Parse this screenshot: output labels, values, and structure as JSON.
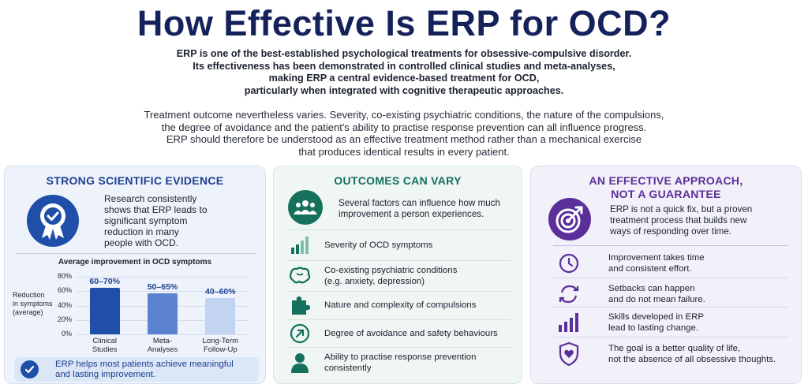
{
  "title": "How Effective Is ERP for OCD?",
  "intro": {
    "p1": [
      "ERP is one of the best-established psychological treatments for obsessive-compulsive disorder.",
      "Its effectiveness has been demonstrated in controlled clinical studies and meta-analyses,",
      "making ERP a central evidence-based treatment for OCD,",
      "particularly when integrated with cognitive therapeutic approaches."
    ],
    "p2": [
      "Treatment outcome nevertheless varies. Severity, co-existing psychiatric conditions, the nature of the compulsions,",
      "the degree of avoidance and the patient's ability to practise response prevention can all influence progress.",
      "ERP should therefore be understood as an effective treatment method rather than a mechanical exercise",
      "that produces identical results in every patient."
    ]
  },
  "left": {
    "title": "STRONG SCIENTIFIC EVIDENCE",
    "icon": "award-badge-icon",
    "lead": [
      "Research consistently",
      "shows that ERP leads to",
      "significant symptom",
      "reduction in many",
      "people with OCD."
    ],
    "chart_title": "Average improvement in OCD symptoms",
    "ylabel": [
      "Reduction",
      "in symptoms",
      "(average)"
    ],
    "banner": [
      "ERP helps most patients achieve meaningful",
      "and lasting improvement."
    ],
    "colors": {
      "accent": "#1d3e8f",
      "bar1": "#1f4fa8",
      "bar2": "#5b83cf",
      "bar3": "#c3d4f1"
    }
  },
  "chart_data": {
    "type": "bar",
    "categories": [
      [
        "Clinical",
        "Studies"
      ],
      [
        "Meta-",
        "Analyses"
      ],
      [
        "Long-Term",
        "Follow-Up"
      ]
    ],
    "series": [
      {
        "values": [
          65,
          57.5,
          50
        ]
      }
    ],
    "data_labels": [
      "60–70%",
      "50–65%",
      "40–60%"
    ],
    "title": "Average improvement in OCD symptoms",
    "xlabel": "",
    "ylabel": "Reduction in symptoms (average)",
    "ylim": [
      0,
      80
    ],
    "yticks": [
      "0%",
      "20%",
      "40%",
      "60%",
      "80%"
    ],
    "grid": true
  },
  "mid": {
    "title": "OUTCOMES CAN VARY",
    "icon": "people-group-icon",
    "lead": [
      "Several factors can influence how much",
      "improvement a person experiences."
    ],
    "items": [
      {
        "icon": "signal-bars-icon",
        "lines": [
          "Severity of OCD symptoms"
        ]
      },
      {
        "icon": "brain-icon",
        "lines": [
          "Co-existing psychiatric conditions",
          "(e.g. anxiety, depression)"
        ]
      },
      {
        "icon": "puzzle-icon",
        "lines": [
          "Nature and complexity of compulsions"
        ]
      },
      {
        "icon": "arrow-up-right-icon",
        "lines": [
          "Degree of avoidance and safety behaviours"
        ]
      },
      {
        "icon": "person-icon",
        "lines": [
          "Ability to practise response prevention",
          "consistently"
        ]
      }
    ],
    "colors": {
      "accent": "#15705c"
    }
  },
  "right": {
    "title": [
      "AN EFFECTIVE APPROACH,",
      "NOT A GUARANTEE"
    ],
    "icon": "target-arrow-icon",
    "lead": [
      "ERP is not a quick fix, but a proven",
      "treatment process that builds new",
      "ways of responding over time."
    ],
    "items": [
      {
        "icon": "clock-icon",
        "lines": [
          "Improvement takes time",
          "and consistent effort."
        ]
      },
      {
        "icon": "refresh-cycle-icon",
        "lines": [
          "Setbacks can happen",
          "and do not mean failure."
        ]
      },
      {
        "icon": "growth-bars-icon",
        "lines": [
          "Skills developed in ERP",
          "lead to lasting change."
        ]
      },
      {
        "icon": "heart-shield-icon",
        "lines": [
          "The goal is a better quality of life,",
          "not the absence of all obsessive thoughts."
        ]
      }
    ],
    "colors": {
      "accent": "#5a2f9a"
    }
  }
}
